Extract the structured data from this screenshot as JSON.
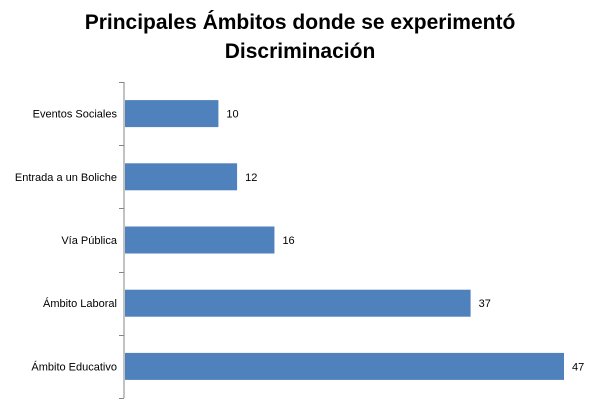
{
  "chart_data": {
    "type": "bar",
    "orientation": "horizontal",
    "title_lines": [
      "Principales Ámbitos donde se experimentó",
      "Discriminación"
    ],
    "categories": [
      "Eventos Sociales",
      "Entrada a un Boliche",
      "Vía Pública",
      "Ámbito Laboral",
      "Ámbito Educativo"
    ],
    "values": [
      10,
      12,
      16,
      37,
      47
    ],
    "xlim": [
      0,
      50
    ],
    "grid": false,
    "legend": "none",
    "bar_color": "#4F81BD",
    "data_labels": true
  }
}
